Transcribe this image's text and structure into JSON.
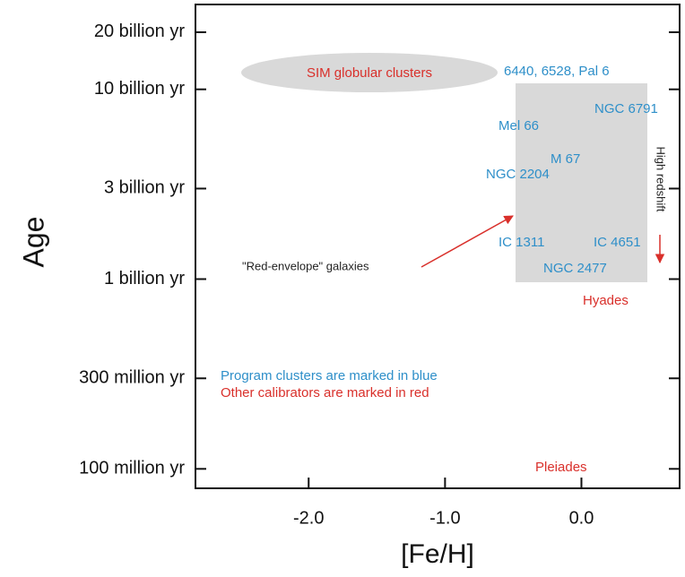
{
  "chart_data": {
    "type": "scatter",
    "xlabel": "[Fe/H]",
    "ylabel": "Age",
    "xlim": [
      -2.83,
      0.72
    ],
    "xticks": [
      {
        "value": -2,
        "label": "-2.0"
      },
      {
        "value": -1,
        "label": "-1.0"
      },
      {
        "value": 0,
        "label": "0.0"
      }
    ],
    "ylim": [
      79000000,
      28000000000
    ],
    "yscale": "log",
    "yticks": [
      {
        "value": 100000000,
        "label": "100 million yr"
      },
      {
        "value": 300000000,
        "label": "300 million yr"
      },
      {
        "value": 1000000000,
        "label": "1 billion yr"
      },
      {
        "value": 3000000000,
        "label": "3 billion yr"
      },
      {
        "value": 10000000000,
        "label": "10 billion yr"
      },
      {
        "value": 20000000000,
        "label": "20 billion yr"
      }
    ],
    "annotations": [
      "SIM globular clusters",
      "6440, 6528, Pal 6",
      "NGC 6791",
      "Mel 66",
      "M 67",
      "NGC 2204",
      "High redshift",
      "IC 1311",
      "IC 4651",
      "NGC 2477",
      "\"Red-envelope\" galaxies",
      "Hyades",
      "Program clusters are marked in blue",
      "Other calibrators are marked in red",
      "Pleiades"
    ]
  }
}
